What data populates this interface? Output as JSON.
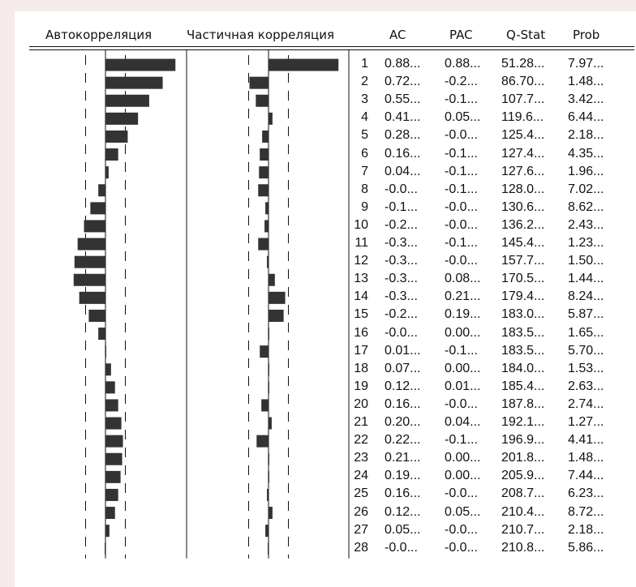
{
  "headers": {
    "acf": "Автокорреляция",
    "pacf": "Частичная корреляция",
    "ac": "AC",
    "pac": "PAC",
    "qstat": "Q-Stat",
    "prob": "Prob"
  },
  "correlogram": {
    "lags": [
      1,
      2,
      3,
      4,
      5,
      6,
      7,
      8,
      9,
      10,
      11,
      12,
      13,
      14,
      15,
      16,
      17,
      18,
      19,
      20,
      21,
      22,
      23,
      24,
      25,
      26,
      27,
      28
    ],
    "ac_text": [
      "0.88...",
      "0.72...",
      "0.55...",
      "0.41...",
      "0.28...",
      "0.16...",
      "0.04...",
      "-0.0...",
      "-0.1...",
      "-0.2...",
      "-0.3...",
      "-0.3...",
      "-0.3...",
      "-0.3...",
      "-0.2...",
      "-0.0...",
      "0.01...",
      "0.07...",
      "0.12...",
      "0.16...",
      "0.20...",
      "0.22...",
      "0.21...",
      "0.19...",
      "0.16...",
      "0.12...",
      "0.05...",
      "-0.0..."
    ],
    "pac_text": [
      "0.88...",
      "-0.2...",
      "-0.1...",
      "0.05...",
      "-0.0...",
      "-0.1...",
      "-0.1...",
      "-0.1...",
      "-0.0...",
      "-0.0...",
      "-0.1...",
      "-0.0...",
      "0.08...",
      "0.21...",
      "0.19...",
      "0.00...",
      "-0.1...",
      "0.00...",
      "0.01...",
      "-0.0...",
      "0.04...",
      "-0.1...",
      "0.00...",
      "0.00...",
      "-0.0...",
      "0.05...",
      "-0.0...",
      "-0.0..."
    ],
    "qstat_text": [
      "51.28...",
      "86.70...",
      "107.7...",
      "119.6...",
      "125.4...",
      "127.4...",
      "127.6...",
      "128.0...",
      "130.6...",
      "136.2...",
      "145.4...",
      "157.7...",
      "170.5...",
      "179.4...",
      "183.0...",
      "183.5...",
      "183.5...",
      "184.0...",
      "185.4...",
      "187.8...",
      "192.1...",
      "196.9...",
      "201.8...",
      "205.9...",
      "208.7...",
      "210.4...",
      "210.7...",
      "210.8..."
    ],
    "prob_text": [
      "7.97...",
      "1.48...",
      "3.42...",
      "6.44...",
      "2.18...",
      "4.35...",
      "1.96...",
      "7.02...",
      "8.62...",
      "2.43...",
      "1.23...",
      "1.50...",
      "1.44...",
      "8.24...",
      "5.87...",
      "1.65...",
      "5.70...",
      "1.53...",
      "2.63...",
      "2.74...",
      "1.27...",
      "4.41...",
      "1.48...",
      "7.44...",
      "6.23...",
      "8.72...",
      "2.18...",
      "5.86..."
    ],
    "ac_values": [
      0.88,
      0.72,
      0.55,
      0.41,
      0.28,
      0.16,
      0.04,
      -0.09,
      -0.19,
      -0.27,
      -0.35,
      -0.39,
      -0.4,
      -0.33,
      -0.21,
      -0.09,
      0.01,
      0.07,
      0.12,
      0.16,
      0.2,
      0.22,
      0.21,
      0.19,
      0.16,
      0.12,
      0.05,
      -0.01
    ],
    "pac_values": [
      0.88,
      -0.24,
      -0.16,
      0.05,
      -0.08,
      -0.11,
      -0.12,
      -0.13,
      -0.04,
      -0.05,
      -0.13,
      -0.02,
      0.08,
      0.21,
      0.19,
      0.0,
      -0.11,
      0.0,
      0.01,
      -0.09,
      0.04,
      -0.15,
      0.0,
      0.0,
      -0.02,
      0.05,
      -0.04,
      -0.01
    ],
    "confidence_band": 0.25,
    "bar_color": "#333333",
    "line_color": "#111111"
  }
}
